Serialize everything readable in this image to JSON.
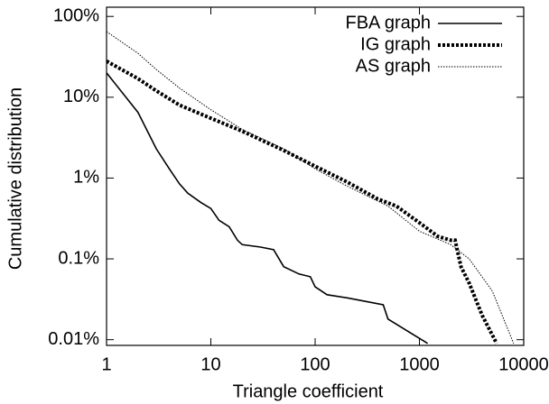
{
  "chart_data": {
    "type": "line",
    "xlabel": "Triangle coefficient",
    "ylabel": "Cumulative distribution",
    "xscale": "log",
    "yscale": "log",
    "xlim": [
      1,
      10000
    ],
    "xticks": [
      1,
      10,
      100,
      1000,
      10000
    ],
    "ylim": [
      0.0085,
      130
    ],
    "yticks": [
      {
        "value": 0.01,
        "label": "0.01%"
      },
      {
        "value": 0.1,
        "label": "0.1%"
      },
      {
        "value": 1,
        "label": "1%"
      },
      {
        "value": 10,
        "label": "10%"
      },
      {
        "value": 100,
        "label": "100%"
      }
    ],
    "legend": "upper right",
    "series": [
      {
        "name": "FBA graph",
        "color": "#000000",
        "line_style": "solid",
        "x": [
          1,
          2,
          3,
          4,
          5,
          6,
          8,
          10,
          12,
          15,
          18,
          20,
          30,
          40,
          50,
          70,
          90,
          100,
          130,
          200,
          450,
          500,
          1200
        ],
        "values": [
          20,
          6.5,
          2.3,
          1.3,
          0.85,
          0.65,
          0.5,
          0.42,
          0.3,
          0.25,
          0.17,
          0.15,
          0.14,
          0.13,
          0.08,
          0.065,
          0.06,
          0.045,
          0.036,
          0.033,
          0.027,
          0.018,
          0.009
        ]
      },
      {
        "name": "IG graph",
        "color": "#000000",
        "line_style": "thick-dotted",
        "x": [
          1,
          2,
          3,
          5,
          10,
          20,
          50,
          100,
          200,
          400,
          600,
          1000,
          1500,
          2000,
          2200,
          2500,
          3000,
          4000,
          5500
        ],
        "values": [
          28,
          17,
          12,
          8,
          5.5,
          3.8,
          2.2,
          1.4,
          0.9,
          0.55,
          0.45,
          0.28,
          0.19,
          0.17,
          0.17,
          0.08,
          0.05,
          0.02,
          0.009
        ]
      },
      {
        "name": "AS graph",
        "color": "#000000",
        "line_style": "dotted",
        "x": [
          1,
          2,
          3,
          5,
          10,
          20,
          50,
          100,
          200,
          500,
          1000,
          2000,
          3000,
          5000,
          8000
        ],
        "values": [
          65,
          35,
          22,
          13,
          7,
          4,
          2.3,
          1.3,
          0.8,
          0.45,
          0.22,
          0.15,
          0.1,
          0.04,
          0.009
        ]
      }
    ]
  }
}
